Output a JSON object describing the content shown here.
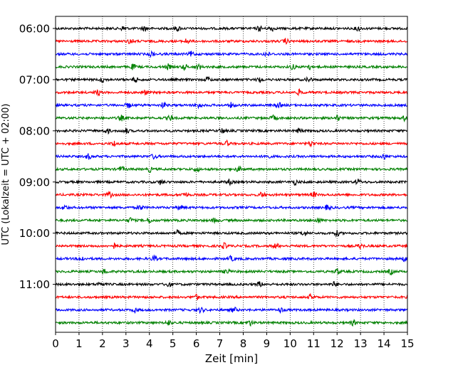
{
  "chart_data": {
    "type": "line",
    "title": "",
    "xlabel": "Zeit  [min]",
    "ylabel": "UTC (Lokalzeit = UTC + 02:00)",
    "xlim": [
      0,
      15
    ],
    "x_ticks": [
      0,
      1,
      2,
      3,
      4,
      5,
      6,
      7,
      8,
      9,
      10,
      11,
      12,
      13,
      14,
      15
    ],
    "x_tick_labels": [
      "0",
      "1",
      "2",
      "3",
      "4",
      "5",
      "6",
      "7",
      "8",
      "9",
      "10",
      "11",
      "12",
      "13",
      "14",
      "15"
    ],
    "y_tick_labels": [
      {
        "row": 0,
        "label": "06:00"
      },
      {
        "row": 4,
        "label": "07:00"
      },
      {
        "row": 8,
        "label": "08:00"
      },
      {
        "row": 12,
        "label": "09:00"
      },
      {
        "row": 16,
        "label": "10:00"
      },
      {
        "row": 20,
        "label": "11:00"
      }
    ],
    "row_interval_minutes": 15,
    "grid": {
      "x": true,
      "style": "dotted"
    },
    "trace_colors": [
      "#000000",
      "#ff0000",
      "#0000ff",
      "#008000"
    ],
    "traces": [
      {
        "start": "06:00",
        "color": "#000000",
        "events": [
          2.9,
          3.8,
          5.2,
          8.7,
          9.2,
          12.9
        ]
      },
      {
        "start": "06:15",
        "color": "#ff0000",
        "events": [
          3.2,
          5.6,
          9.8
        ]
      },
      {
        "start": "06:30",
        "color": "#0000ff",
        "events": [
          4.1,
          5.8,
          9.0
        ]
      },
      {
        "start": "06:45",
        "color": "#008000",
        "events": [
          3.3,
          4.8,
          5.5,
          6.1,
          10.1,
          10.8
        ]
      },
      {
        "start": "07:00",
        "color": "#000000",
        "events": [
          2.0,
          3.4,
          6.5,
          8.7,
          10.8
        ]
      },
      {
        "start": "07:15",
        "color": "#ff0000",
        "events": [
          1.8,
          3.8,
          10.4
        ]
      },
      {
        "start": "07:30",
        "color": "#0000ff",
        "events": [
          3.1,
          4.6,
          6.1,
          7.5,
          9.5
        ]
      },
      {
        "start": "07:45",
        "color": "#008000",
        "events": [
          2.8,
          4.9,
          9.3,
          12.0,
          14.9
        ]
      },
      {
        "start": "08:00",
        "color": "#000000",
        "events": [
          2.2,
          3.0,
          7.1,
          10.4
        ]
      },
      {
        "start": "08:15",
        "color": "#ff0000",
        "events": [
          2.5,
          7.3,
          10.9
        ]
      },
      {
        "start": "08:30",
        "color": "#0000ff",
        "events": [
          1.4,
          4.2,
          9.0,
          14.0
        ]
      },
      {
        "start": "08:45",
        "color": "#008000",
        "events": [
          2.8,
          4.0,
          6.0,
          7.8
        ]
      },
      {
        "start": "09:00",
        "color": "#000000",
        "events": [
          4.5,
          7.4,
          10.2,
          12.9
        ]
      },
      {
        "start": "09:15",
        "color": "#ff0000",
        "events": [
          2.3,
          5.5,
          8.8,
          11.0
        ]
      },
      {
        "start": "09:30",
        "color": "#0000ff",
        "events": [
          0.4,
          3.6,
          5.3,
          11.6
        ]
      },
      {
        "start": "09:45",
        "color": "#008000",
        "events": [
          3.2,
          4.0,
          6.8,
          11.2
        ]
      },
      {
        "start": "10:00",
        "color": "#000000",
        "events": [
          5.2,
          10.6,
          12.0
        ]
      },
      {
        "start": "10:15",
        "color": "#ff0000",
        "events": [
          2.5,
          7.2,
          9.4,
          13.0
        ]
      },
      {
        "start": "10:30",
        "color": "#0000ff",
        "events": [
          1.1,
          4.2,
          7.5,
          14.9
        ]
      },
      {
        "start": "10:45",
        "color": "#008000",
        "events": [
          2.1,
          7.3,
          12.0,
          14.3
        ]
      },
      {
        "start": "11:00",
        "color": "#000000",
        "events": [
          1.9,
          4.8,
          8.7,
          11.9
        ]
      },
      {
        "start": "11:15",
        "color": "#ff0000",
        "events": [
          6.0,
          10.9
        ]
      },
      {
        "start": "11:30",
        "color": "#0000ff",
        "events": [
          3.4,
          6.2,
          7.6,
          9.6
        ]
      },
      {
        "start": "11:45",
        "color": "#008000",
        "events": [
          4.8,
          8.3,
          12.7
        ]
      }
    ]
  }
}
